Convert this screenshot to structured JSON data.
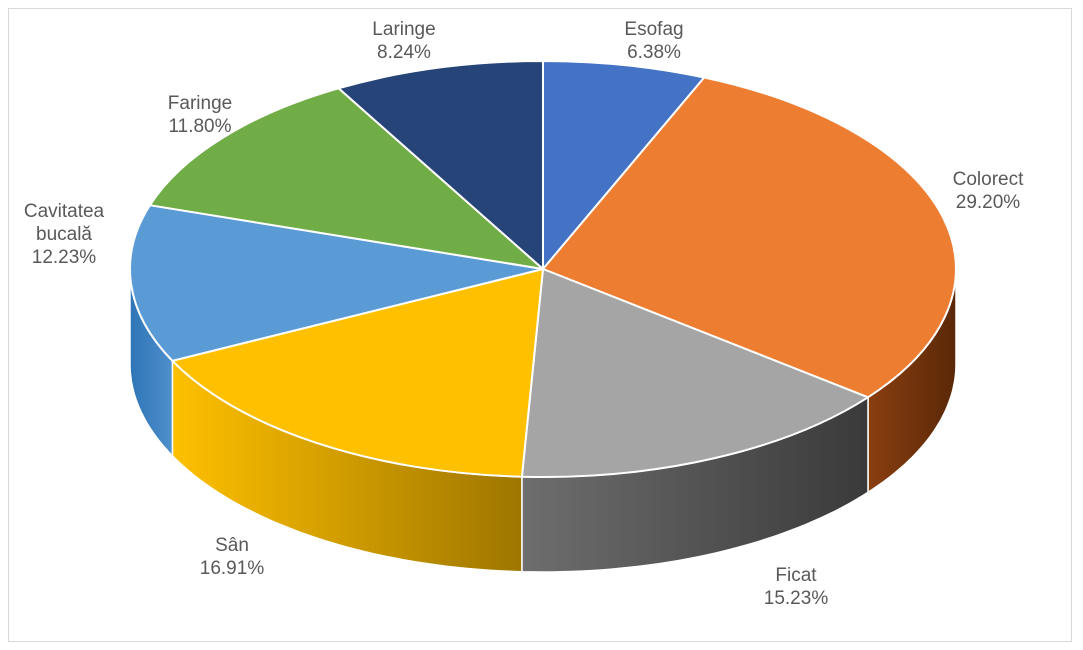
{
  "chart_data": {
    "type": "pie",
    "title": "",
    "slices": [
      {
        "label": [
          "Esofag"
        ],
        "value_text": "6.38%",
        "value": 6.38,
        "color": "#4472C4",
        "side_color": "#2F5597"
      },
      {
        "label": [
          "Colorect"
        ],
        "value_text": "29.20%",
        "value": 29.2,
        "color": "#ED7D31",
        "side_color": "#843C0C"
      },
      {
        "label": [
          "Ficat"
        ],
        "value_text": "15.23%",
        "value": 15.23,
        "color": "#A5A5A5",
        "side_color": "#3F3F3F"
      },
      {
        "label": [
          "Sân"
        ],
        "value_text": "16.91%",
        "value": 16.91,
        "color": "#FFC000",
        "side_color": "#BF8F00"
      },
      {
        "label": [
          "Cavitatea",
          "bucală"
        ],
        "value_text": "12.23%",
        "value": 12.23,
        "color": "#5B9BD5",
        "side_color": "#2E75B6"
      },
      {
        "label": [
          "Faringe"
        ],
        "value_text": "11.80%",
        "value": 11.8,
        "color": "#70AD47",
        "side_color": "#507E32"
      },
      {
        "label": [
          "Laringe"
        ],
        "value_text": "8.24%",
        "value": 8.24,
        "color": "#264478",
        "side_color": "#1B2F52"
      }
    ]
  }
}
